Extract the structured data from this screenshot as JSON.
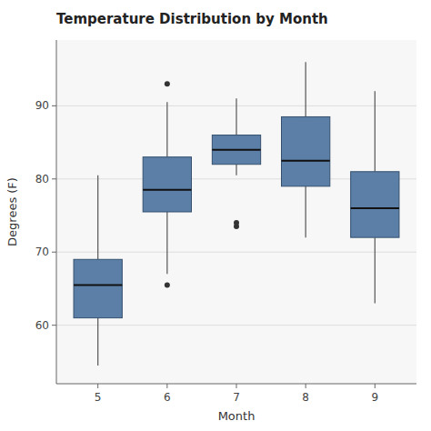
{
  "chart_data": {
    "type": "box",
    "title": "Temperature Distribution by Month",
    "xlabel": "Month",
    "ylabel": "Degrees (F)",
    "color": "#5B7FA6",
    "x": [
      5,
      6,
      7,
      8,
      9
    ],
    "boxes": [
      {
        "q1": 61.0,
        "median": 65.5,
        "q3": 69.0,
        "whisker_low": 54.5,
        "whisker_high": 80.5,
        "outliers": []
      },
      {
        "q1": 75.5,
        "median": 78.5,
        "q3": 83.0,
        "whisker_low": 67.0,
        "whisker_high": 90.5,
        "outliers": [
          65.5,
          93.0
        ]
      },
      {
        "q1": 82.0,
        "median": 84.0,
        "q3": 86.0,
        "whisker_low": 80.5,
        "whisker_high": 91.0,
        "outliers": [
          73.5,
          74.0
        ]
      },
      {
        "q1": 79.0,
        "median": 82.5,
        "q3": 88.5,
        "whisker_low": 72.0,
        "whisker_high": 96.0,
        "outliers": []
      },
      {
        "q1": 72.0,
        "median": 76.0,
        "q3": 81.0,
        "whisker_low": 63.0,
        "whisker_high": 92.0,
        "outliers": []
      }
    ],
    "xlim": [
      4.4,
      9.6
    ],
    "xticks": [
      5,
      6,
      7,
      8,
      9
    ],
    "ylim": [
      52,
      99
    ],
    "yticks": [
      60,
      70,
      80,
      90
    ],
    "grid": true
  }
}
